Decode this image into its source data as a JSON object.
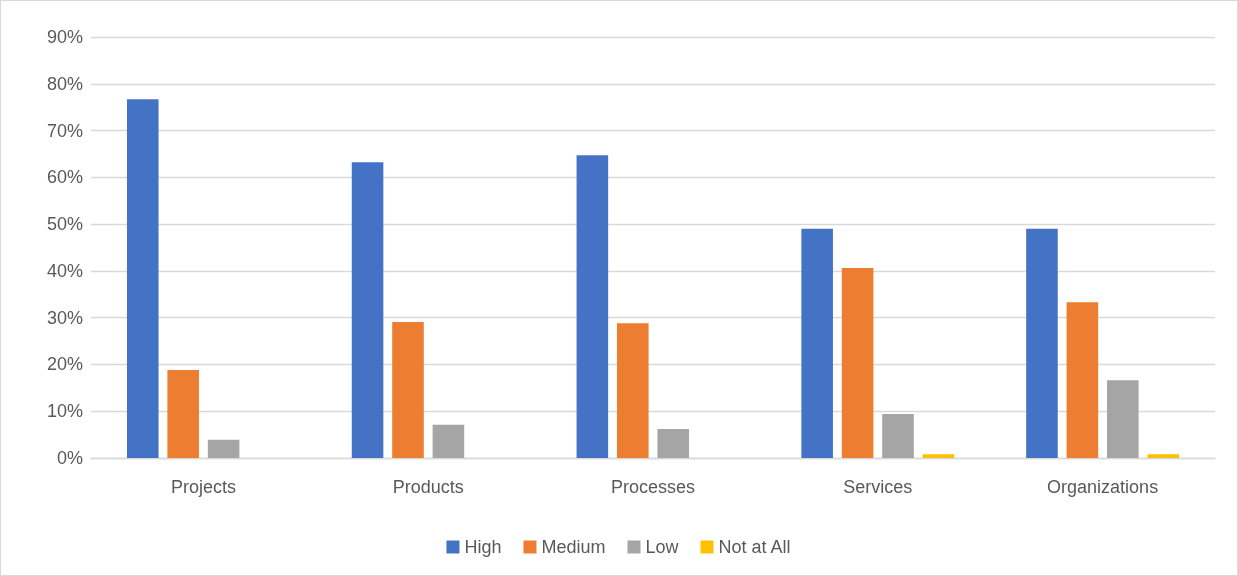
{
  "chart_data": {
    "type": "bar",
    "categories": [
      "Projects",
      "Products",
      "Processes",
      "Services",
      "Organizations"
    ],
    "series": [
      {
        "name": "High",
        "color": "#4472c4",
        "values": [
          76.7,
          63.2,
          64.7,
          49.0,
          49.0
        ]
      },
      {
        "name": "Medium",
        "color": "#ed7d31",
        "values": [
          18.8,
          29.1,
          28.8,
          40.6,
          33.3
        ]
      },
      {
        "name": "Low",
        "color": "#a5a5a5",
        "values": [
          3.9,
          7.1,
          6.2,
          9.4,
          16.6
        ]
      },
      {
        "name": "Not at All",
        "color": "#ffc000",
        "values": [
          0,
          0,
          0,
          0.8,
          0.8
        ]
      }
    ],
    "ylim": [
      0,
      90
    ],
    "yticks": [
      {
        "value": 0,
        "label": "0%"
      },
      {
        "value": 10,
        "label": "10%"
      },
      {
        "value": 20,
        "label": "20%"
      },
      {
        "value": 30,
        "label": "30%"
      },
      {
        "value": 40,
        "label": "40%"
      },
      {
        "value": 50,
        "label": "50%"
      },
      {
        "value": 60,
        "label": "60%"
      },
      {
        "value": 70,
        "label": "70%"
      },
      {
        "value": 80,
        "label": "80%"
      },
      {
        "value": 90,
        "label": "90%"
      }
    ],
    "grid": "y",
    "legend": "bottom"
  }
}
